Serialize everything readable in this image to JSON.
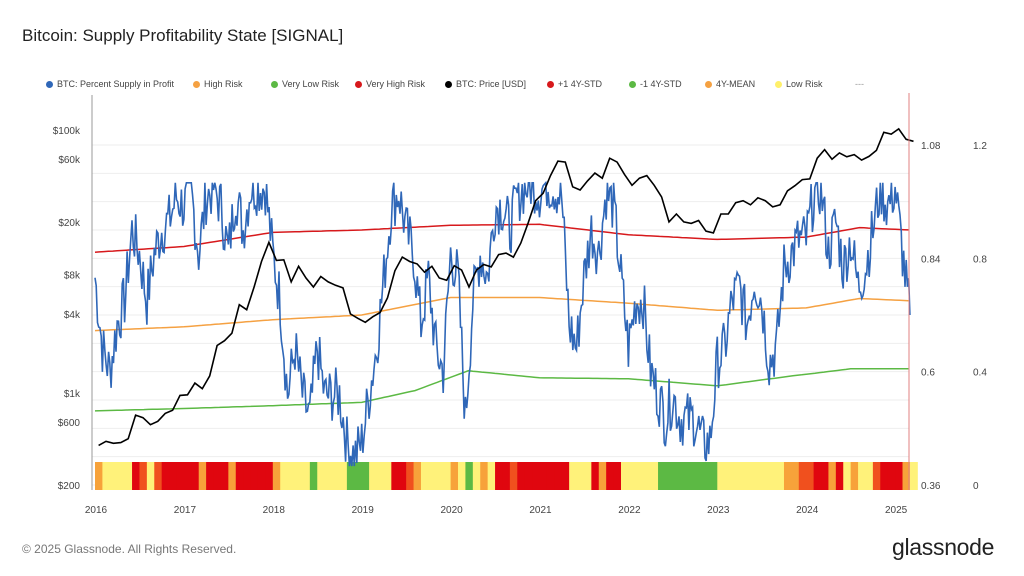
{
  "title": "Bitcoin: Supply Profitability State [SIGNAL]",
  "footer": "© 2025 Glassnode. All Rights Reserved.",
  "logo": "glassnode",
  "legend": [
    {
      "label": "BTC: Percent Supply in Profit",
      "color": "#2f67b8"
    },
    {
      "label": "High Risk",
      "color": "#f5a142"
    },
    {
      "label": "Very Low Risk",
      "color": "#5cb944"
    },
    {
      "label": "Very High Risk",
      "color": "#d7191c"
    },
    {
      "label": "BTC: Price [USD]",
      "color": "#000000"
    },
    {
      "label": "+1 4Y-STD",
      "color": "#d7191c"
    },
    {
      "label": "-1 4Y-STD",
      "color": "#5cb944"
    },
    {
      "label": "4Y-MEAN",
      "color": "#f5a142"
    },
    {
      "label": "Low Risk",
      "color": "#fff06a"
    },
    {
      "label": "---",
      "color": ""
    }
  ],
  "chart_data": {
    "type": "line",
    "title": "Bitcoin: Supply Profitability State [SIGNAL]",
    "x_start": "2016-01",
    "x_step": "month",
    "x_ticks": [
      "2016",
      "2017",
      "2018",
      "2019",
      "2020",
      "2021",
      "2022",
      "2023",
      "2024",
      "2025"
    ],
    "y_left_ticks": [
      "$100k",
      "$60k",
      "$20k",
      "$8k",
      "$4k",
      "$1k",
      "$600",
      "$200"
    ],
    "y_left_values": [
      100000,
      60000,
      20000,
      8000,
      4000,
      1000,
      600,
      200
    ],
    "y_left_scale": "log",
    "y_left_range": [
      200,
      100000
    ],
    "y_mid_ticks": [
      "1.08",
      "0.84",
      "0.6",
      "0.36"
    ],
    "y_mid_range": [
      0.36,
      1.08
    ],
    "y_right_ticks": [
      "1.2",
      "0.8",
      "0.4",
      "0"
    ],
    "y_right_range": [
      0,
      1.2
    ],
    "price": [
      400,
      430,
      415,
      420,
      450,
      680,
      650,
      575,
      610,
      700,
      740,
      960,
      970,
      1190,
      1080,
      1350,
      2300,
      2500,
      2850,
      4700,
      4300,
      6400,
      10000,
      14000,
      10200,
      10300,
      7000,
      9200,
      7500,
      6400,
      7700,
      7000,
      6600,
      6300,
      4000,
      3700,
      3450,
      3800,
      4100,
      5300,
      8500,
      10800,
      10000,
      9600,
      8300,
      9200,
      7500,
      7200,
      9300,
      8600,
      6400,
      8600,
      9500,
      9100,
      11300,
      11600,
      10800,
      13800,
      19700,
      29000,
      33000,
      45000,
      58000,
      57000,
      37000,
      35000,
      41000,
      47000,
      43000,
      61000,
      57000,
      46000,
      38000,
      43000,
      45000,
      38000,
      31000,
      20000,
      23000,
      20000,
      19500,
      20500,
      17000,
      16500,
      23000,
      23000,
      28000,
      29000,
      27000,
      30500,
      29000,
      26000,
      27000,
      34500,
      37700,
      42000,
      42500,
      61000,
      71000,
      60000,
      67000,
      62500,
      65000,
      59000,
      63000,
      70000,
      96000,
      93000,
      102000,
      85000,
      82000
    ],
    "percent_supply_in_profit": [
      0.8,
      0.65,
      0.6,
      0.7,
      0.75,
      0.9,
      0.85,
      0.75,
      0.85,
      0.9,
      0.92,
      0.97,
      0.95,
      0.98,
      0.85,
      0.97,
      0.99,
      0.95,
      0.85,
      0.98,
      0.9,
      0.99,
      0.99,
      0.99,
      0.85,
      0.75,
      0.55,
      0.65,
      0.55,
      0.5,
      0.65,
      0.55,
      0.55,
      0.55,
      0.45,
      0.42,
      0.45,
      0.55,
      0.65,
      0.8,
      0.95,
      0.98,
      0.9,
      0.85,
      0.7,
      0.8,
      0.65,
      0.6,
      0.85,
      0.8,
      0.5,
      0.75,
      0.85,
      0.8,
      0.95,
      0.95,
      0.9,
      0.97,
      0.99,
      1.0,
      0.98,
      1.0,
      0.99,
      0.97,
      0.7,
      0.65,
      0.8,
      0.9,
      0.85,
      0.98,
      0.95,
      0.8,
      0.65,
      0.75,
      0.75,
      0.6,
      0.55,
      0.5,
      0.55,
      0.5,
      0.5,
      0.5,
      0.45,
      0.45,
      0.62,
      0.65,
      0.75,
      0.78,
      0.7,
      0.8,
      0.75,
      0.62,
      0.65,
      0.82,
      0.85,
      0.88,
      0.88,
      0.97,
      0.99,
      0.85,
      0.92,
      0.82,
      0.88,
      0.78,
      0.82,
      0.9,
      0.99,
      0.95,
      0.99,
      0.85,
      0.72
    ],
    "plus_1_std": [
      [
        2016,
        0.853
      ],
      [
        2017,
        0.865
      ],
      [
        2018,
        0.895
      ],
      [
        2019,
        0.9
      ],
      [
        2020,
        0.91
      ],
      [
        2021,
        0.912
      ],
      [
        2022,
        0.89
      ],
      [
        2023,
        0.88
      ],
      [
        2024,
        0.885
      ],
      [
        2024.6,
        0.905
      ],
      [
        2025.17,
        0.9
      ]
    ],
    "mean_4y": [
      [
        2016,
        0.687
      ],
      [
        2017,
        0.695
      ],
      [
        2018,
        0.71
      ],
      [
        2019,
        0.72
      ],
      [
        2020,
        0.757
      ],
      [
        2021,
        0.757
      ],
      [
        2022,
        0.745
      ],
      [
        2023,
        0.73
      ],
      [
        2024,
        0.735
      ],
      [
        2024.6,
        0.755
      ],
      [
        2025.17,
        0.75
      ]
    ],
    "minus_1_std": [
      [
        2016,
        0.517
      ],
      [
        2017,
        0.522
      ],
      [
        2018,
        0.528
      ],
      [
        2019,
        0.535
      ],
      [
        2019.6,
        0.56
      ],
      [
        2020.2,
        0.602
      ],
      [
        2021,
        0.587
      ],
      [
        2022,
        0.585
      ],
      [
        2023,
        0.57
      ],
      [
        2023.8,
        0.59
      ],
      [
        2024.5,
        0.606
      ],
      [
        2025.17,
        0.606
      ]
    ]
  }
}
